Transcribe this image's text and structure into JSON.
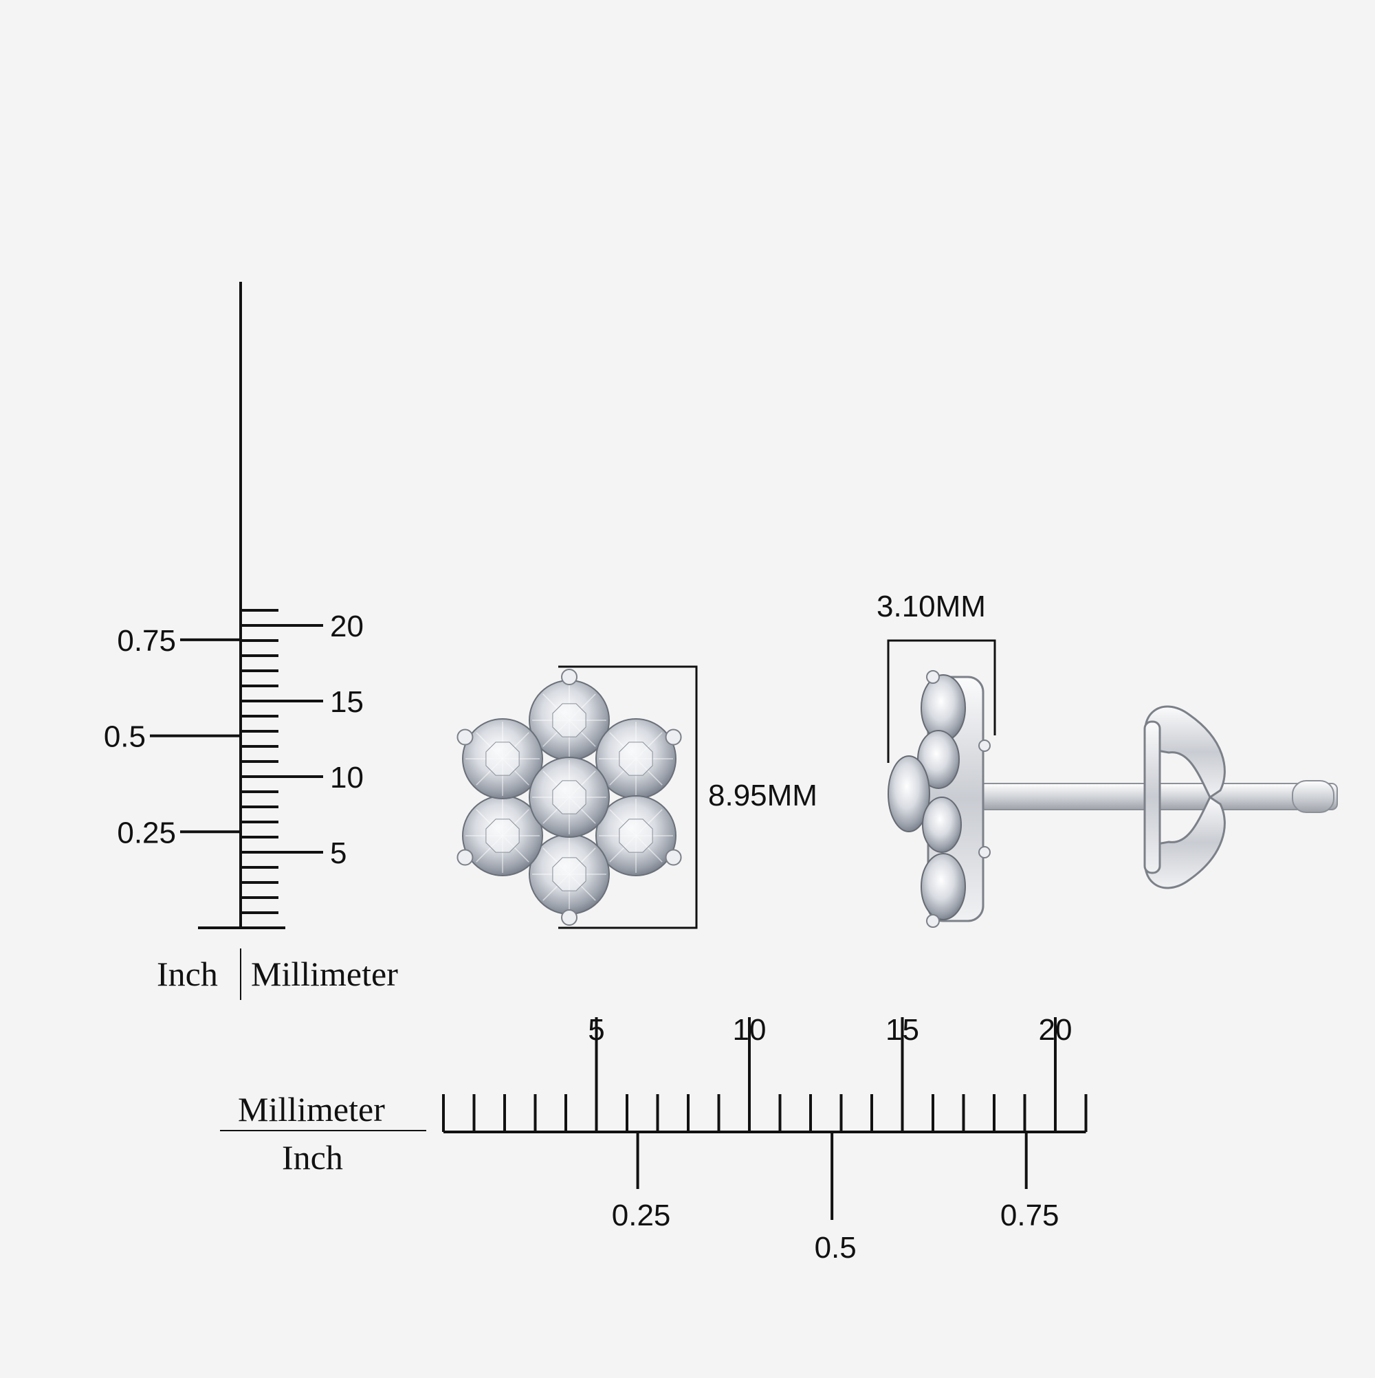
{
  "vertical_ruler": {
    "inch_label": "Inch",
    "mm_label": "Millimeter",
    "mm_ticks": [
      "5",
      "10",
      "15",
      "20"
    ],
    "inch_ticks": [
      "0.25",
      "0.5",
      "0.75"
    ]
  },
  "horizontal_ruler": {
    "mm_label": "Millimeter",
    "inch_label": "Inch",
    "mm_ticks": [
      "5",
      "10",
      "15",
      "20"
    ],
    "inch_ticks": [
      "0.25",
      "0.5",
      "0.75"
    ]
  },
  "product": {
    "front_view": {
      "width_label": "8.95MM"
    },
    "side_view": {
      "depth_label": "3.10MM"
    }
  },
  "colors": {
    "background": "#f4f4f4",
    "ink": "#111111",
    "metal": "#d8dade",
    "diamond": "#e6e8ec"
  }
}
